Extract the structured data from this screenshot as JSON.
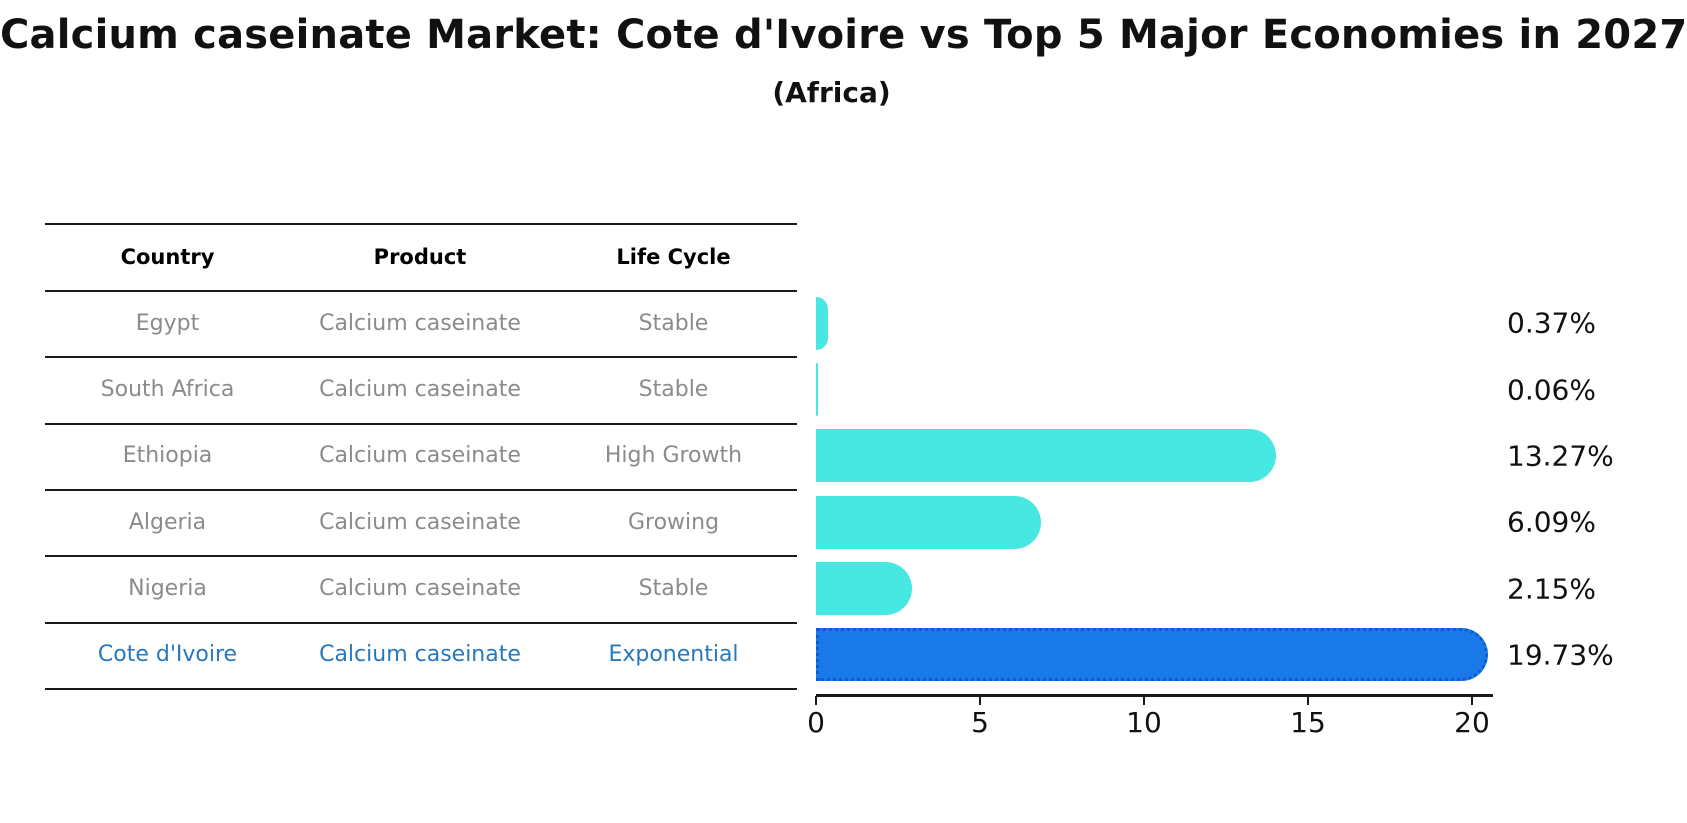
{
  "title": "Calcium caseinate Market: Cote d'Ivoire vs Top 5 Major Economies in 2027",
  "subtitle": "(Africa)",
  "table": {
    "headers": [
      "Country",
      "Product",
      "Life Cycle"
    ],
    "rows": [
      {
        "country": "Egypt",
        "product": "Calcium caseinate",
        "life_cycle": "Stable",
        "highlight": false
      },
      {
        "country": "South Africa",
        "product": "Calcium caseinate",
        "life_cycle": "Stable",
        "highlight": false
      },
      {
        "country": "Ethiopia",
        "product": "Calcium caseinate",
        "life_cycle": "High Growth",
        "highlight": false
      },
      {
        "country": "Algeria",
        "product": "Calcium caseinate",
        "life_cycle": "Growing",
        "highlight": false
      },
      {
        "country": "Nigeria",
        "product": "Calcium caseinate",
        "life_cycle": "Stable",
        "highlight": false
      },
      {
        "country": "Cote d'Ivoire",
        "product": "Calcium caseinate",
        "life_cycle": "Exponential",
        "highlight": true
      }
    ]
  },
  "chart_data": {
    "type": "bar",
    "orientation": "horizontal",
    "title": "Calcium caseinate Market: Cote d'Ivoire vs Top 5 Major Economies in 2027",
    "subtitle": "(Africa)",
    "categories": [
      "Egypt",
      "South Africa",
      "Ethiopia",
      "Algeria",
      "Nigeria",
      "Cote d'Ivoire"
    ],
    "values": [
      0.37,
      0.06,
      13.27,
      6.09,
      2.15,
      19.73
    ],
    "value_labels": [
      "0.37%",
      "0.06%",
      "13.27%",
      "6.09%",
      "2.15%",
      "19.73%"
    ],
    "xlabel": "",
    "ylabel": "",
    "xlim": [
      0,
      20
    ],
    "x_ticks": [
      0,
      5,
      10,
      15,
      20
    ],
    "grid": false,
    "legend": false,
    "bar_color": "#46E8E1",
    "highlight_color": "#1A79E8",
    "highlight_border_color": "#0D5BD0",
    "highlight_index": 5,
    "highlight_text_color": "#2878be"
  }
}
